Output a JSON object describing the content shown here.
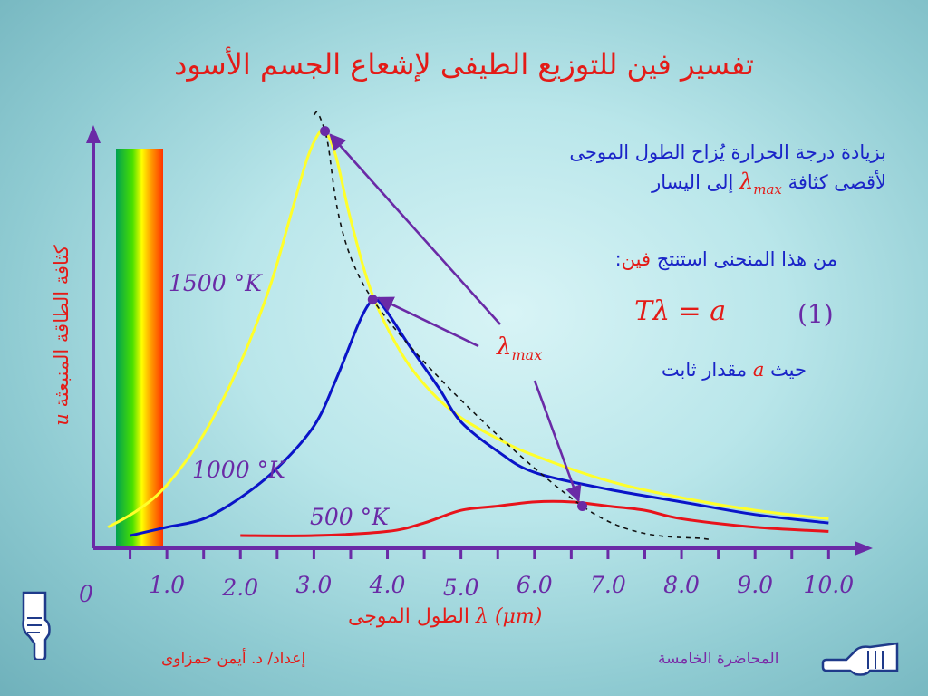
{
  "slide": {
    "title": "تفسير فين للتوزيع الطيفى لإشعاع الجسم الأسود",
    "note_line1": "بزيادة درجة الحرارة يُزاح  الطول الموجى",
    "note_line2_a": "لأقصى كثافة",
    "note_line2_b": "إلى اليسار",
    "lambda_max_symbol": "λ",
    "lambda_max_sub": "max",
    "conclusion_a": "من هذا المنحنى استنتج",
    "conclusion_b": "فين",
    "conclusion_c": ":",
    "equation": "Tλ = a",
    "equation_number": "(1)",
    "constant_a": "حيث",
    "constant_b": "a",
    "constant_c": "مقدار ثابت",
    "footer_author": "إعداد/ د. أيمن حمزاوى",
    "footer_lecture": "المحاضرة الخامسة",
    "colors": {
      "title": "#e41b17",
      "note": "#1a24c8",
      "axis": "#6a2aa6",
      "curve_1500": "#ffff2a",
      "curve_1000": "#0a14c8",
      "curve_500": "#e8131b",
      "arrow": "#6a2aa6"
    },
    "icons": [
      "pointing-hand-down-icon",
      "pointing-hand-left-icon"
    ]
  },
  "chart_data": {
    "type": "line",
    "title": "",
    "xlabel_text": "الطول الموجى",
    "xlabel_symbol": "λ (μm)",
    "ylabel_text": "كثافة الطاقة  المنبعثة",
    "ylabel_symbol": "u",
    "origin_label": "0",
    "xlim": [
      0,
      10.6
    ],
    "ylim": [
      0,
      1.0
    ],
    "x_tick_labels": [
      "1.0",
      "2.0",
      "3.0",
      "4.0",
      "5.0",
      "6.0",
      "7.0",
      "8.0",
      "9.0",
      "10.0"
    ],
    "x_tick_values": [
      1,
      2,
      3,
      4,
      5,
      6,
      7,
      8,
      9,
      10
    ],
    "series": [
      {
        "name": "1500 °K",
        "color": "#ffff2a",
        "x": [
          0.2,
          0.6,
          1.0,
          1.5,
          2.0,
          2.4,
          2.7,
          2.9,
          3.05,
          3.15,
          3.3,
          3.5,
          3.8,
          4.2,
          4.6,
          5.0,
          5.5,
          6.0,
          7.0,
          8.0,
          9.0,
          10.0
        ],
        "y": [
          0.05,
          0.09,
          0.15,
          0.27,
          0.44,
          0.62,
          0.8,
          0.92,
          0.98,
          0.99,
          0.93,
          0.78,
          0.6,
          0.46,
          0.37,
          0.31,
          0.26,
          0.22,
          0.16,
          0.12,
          0.09,
          0.07
        ]
      },
      {
        "name": "1000 °K",
        "color": "#0a14c8",
        "x": [
          0.5,
          1.0,
          1.5,
          2.0,
          2.5,
          3.0,
          3.3,
          3.6,
          3.75,
          3.85,
          4.0,
          4.3,
          4.7,
          5.0,
          5.5,
          6.0,
          7.0,
          8.0,
          9.0,
          10.0
        ],
        "y": [
          0.03,
          0.05,
          0.07,
          0.12,
          0.19,
          0.29,
          0.4,
          0.53,
          0.58,
          0.59,
          0.56,
          0.48,
          0.38,
          0.3,
          0.23,
          0.18,
          0.14,
          0.11,
          0.08,
          0.06
        ]
      },
      {
        "name": "500 °K",
        "color": "#e8131b",
        "x": [
          2.0,
          3.0,
          4.0,
          4.5,
          5.0,
          5.5,
          6.0,
          6.5,
          7.0,
          7.5,
          8.0,
          9.0,
          10.0
        ],
        "y": [
          0.03,
          0.03,
          0.04,
          0.06,
          0.09,
          0.1,
          0.11,
          0.11,
          0.1,
          0.09,
          0.07,
          0.05,
          0.04
        ]
      }
    ],
    "peak_locus": {
      "style": "dashed",
      "points": [
        [
          3.15,
          0.99
        ],
        [
          3.8,
          0.59
        ],
        [
          6.65,
          0.1
        ]
      ]
    },
    "temperature_labels": [
      "1500 °K",
      "1000 °K",
      "500 °K"
    ],
    "grid": false,
    "legend": "none"
  }
}
